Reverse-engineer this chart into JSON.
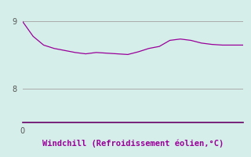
{
  "title": "",
  "xlabel": "Windchill (Refroidissement éolien,°C)",
  "ylabel": "",
  "background_color": "#d5eeea",
  "line_color": "#990099",
  "grid_color": "#aaaaaa",
  "axis_color": "#660066",
  "tick_label_color": "#555555",
  "ylim": [
    7.5,
    9.25
  ],
  "xlim": [
    0,
    21
  ],
  "yticks": [
    8,
    9
  ],
  "xticks": [
    0
  ],
  "x": [
    0,
    1,
    2,
    3,
    4,
    5,
    6,
    7,
    8,
    9,
    10,
    11,
    12,
    13,
    14,
    15,
    16,
    17,
    18,
    19,
    20,
    21
  ],
  "y": [
    9.0,
    8.78,
    8.65,
    8.6,
    8.57,
    8.54,
    8.52,
    8.54,
    8.53,
    8.52,
    8.51,
    8.55,
    8.6,
    8.63,
    8.72,
    8.74,
    8.72,
    8.68,
    8.66,
    8.65,
    8.65,
    8.65
  ]
}
